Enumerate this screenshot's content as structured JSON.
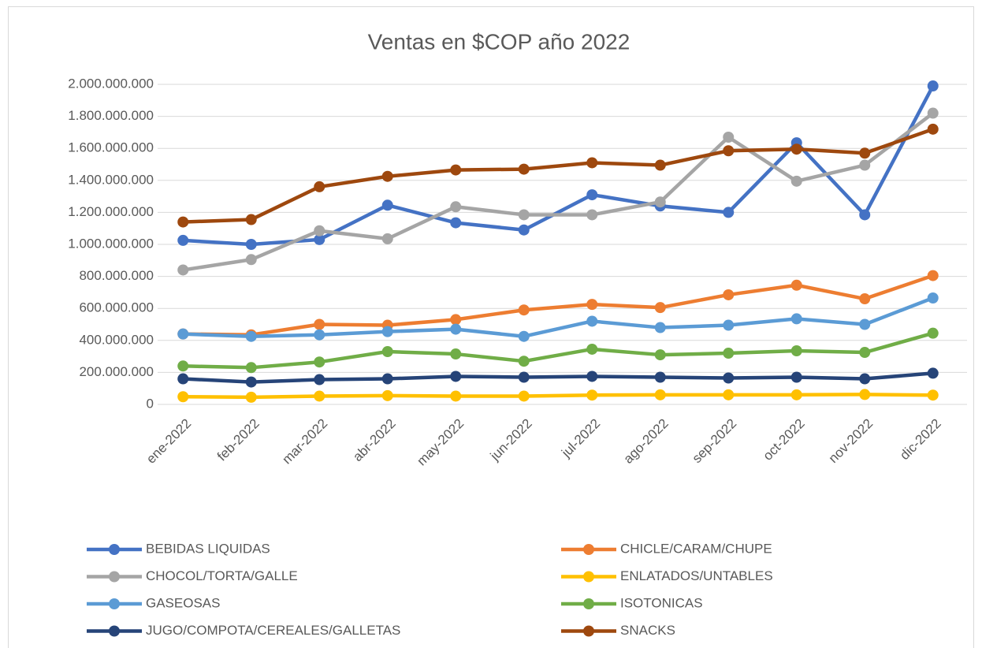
{
  "chart_data": {
    "type": "line",
    "title": "Ventas en $COP año 2022",
    "categories": [
      "ene-2022",
      "feb-2022",
      "mar-2022",
      "abr-2022",
      "may-2022",
      "jun-2022",
      "jul-2022",
      "ago-2022",
      "sep-2022",
      "oct-2022",
      "nov-2022",
      "dic-2022"
    ],
    "series": [
      {
        "name": "BEBIDAS LIQUIDAS",
        "color": "#4472c4",
        "values": [
          1025000000,
          1000000000,
          1030000000,
          1245000000,
          1135000000,
          1090000000,
          1310000000,
          1240000000,
          1200000000,
          1635000000,
          1185000000,
          1990000000
        ]
      },
      {
        "name": "CHICLE/CARAM/CHUPE",
        "color": "#ed7d31",
        "values": [
          440000000,
          435000000,
          500000000,
          495000000,
          530000000,
          590000000,
          625000000,
          605000000,
          685000000,
          745000000,
          660000000,
          805000000
        ]
      },
      {
        "name": "CHOCOL/TORTA/GALLE",
        "color": "#a5a5a5",
        "values": [
          840000000,
          905000000,
          1085000000,
          1035000000,
          1235000000,
          1185000000,
          1185000000,
          1265000000,
          1670000000,
          1395000000,
          1495000000,
          1820000000
        ]
      },
      {
        "name": "ENLATADOS/UNTABLES",
        "color": "#ffc000",
        "values": [
          48000000,
          45000000,
          52000000,
          55000000,
          52000000,
          52000000,
          58000000,
          60000000,
          60000000,
          60000000,
          62000000,
          58000000
        ]
      },
      {
        "name": "GASEOSAS",
        "color": "#5b9bd5",
        "values": [
          440000000,
          425000000,
          435000000,
          455000000,
          470000000,
          425000000,
          520000000,
          480000000,
          495000000,
          535000000,
          500000000,
          665000000
        ]
      },
      {
        "name": "ISOTONICAS",
        "color": "#70ad47",
        "values": [
          240000000,
          230000000,
          265000000,
          330000000,
          315000000,
          270000000,
          345000000,
          310000000,
          320000000,
          335000000,
          325000000,
          445000000
        ]
      },
      {
        "name": "JUGO/COMPOTA/CEREALES/GALLETAS",
        "color": "#264478",
        "values": [
          160000000,
          140000000,
          155000000,
          160000000,
          175000000,
          170000000,
          175000000,
          170000000,
          165000000,
          170000000,
          160000000,
          195000000
        ]
      },
      {
        "name": "SNACKS",
        "color": "#9e480e",
        "values": [
          1140000000,
          1155000000,
          1360000000,
          1425000000,
          1465000000,
          1470000000,
          1510000000,
          1495000000,
          1585000000,
          1595000000,
          1570000000,
          1720000000
        ]
      }
    ],
    "ylim": [
      0,
      2000000000
    ],
    "yticks": [
      0,
      {
        "value": 200000000,
        "label": "200.000.000"
      },
      {
        "value": 400000000,
        "label": "400.000.000"
      },
      {
        "value": 600000000,
        "label": "600.000.000"
      },
      {
        "value": 800000000,
        "label": "800.000.000"
      },
      {
        "value": 1000000000,
        "label": "1.000.000.000"
      },
      {
        "value": 1200000000,
        "label": "1.200.000.000"
      },
      {
        "value": 1400000000,
        "label": "1.400.000.000"
      },
      {
        "value": 1600000000,
        "label": "1.600.000.000"
      },
      {
        "value": 1800000000,
        "label": "1.800.000.000"
      },
      {
        "value": 2000000000,
        "label": "2.000.000.000"
      }
    ],
    "grid": true,
    "legend": "bottom"
  }
}
